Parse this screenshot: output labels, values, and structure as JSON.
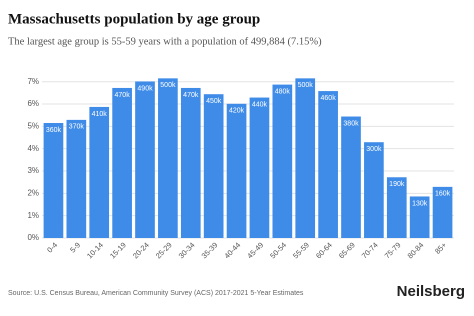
{
  "chart_data": {
    "type": "bar",
    "title": "Massachusetts population by age group",
    "subtitle": "The largest age group is 55-59 years with a population of 499,884 (7.15%)",
    "source": "Source: U.S. Census Bureau, American Community Survey (ACS) 2017-2021 5-Year Estimates",
    "brand": "Neilsberg",
    "categories": [
      "0-4",
      "5-9",
      "10-14",
      "15-19",
      "20-24",
      "25-29",
      "30-34",
      "35-39",
      "40-44",
      "45-49",
      "50-54",
      "55-59",
      "60-64",
      "65-69",
      "70-74",
      "75-79",
      "80-84",
      "85+"
    ],
    "values": [
      5.15,
      5.29,
      5.87,
      6.72,
      7.01,
      7.15,
      6.72,
      6.44,
      6.01,
      6.29,
      6.87,
      7.15,
      6.58,
      5.44,
      4.29,
      2.72,
      1.86,
      2.29
    ],
    "bar_labels": [
      "360k",
      "370k",
      "410k",
      "470k",
      "490k",
      "500k",
      "470k",
      "450k",
      "420k",
      "440k",
      "480k",
      "500k",
      "460k",
      "380k",
      "300k",
      "190k",
      "130k",
      "160k"
    ],
    "color": "#3f8ce8",
    "ylim": [
      0,
      7.3
    ],
    "yticks": [
      {
        "value": 0,
        "label": "0%"
      },
      {
        "value": 1,
        "label": "1%"
      },
      {
        "value": 2,
        "label": "2%"
      },
      {
        "value": 3,
        "label": "3%"
      },
      {
        "value": 4,
        "label": "4%"
      },
      {
        "value": 5,
        "label": "5%"
      },
      {
        "value": 6,
        "label": "6%"
      },
      {
        "value": 7,
        "label": "7%"
      }
    ],
    "grid": true
  }
}
